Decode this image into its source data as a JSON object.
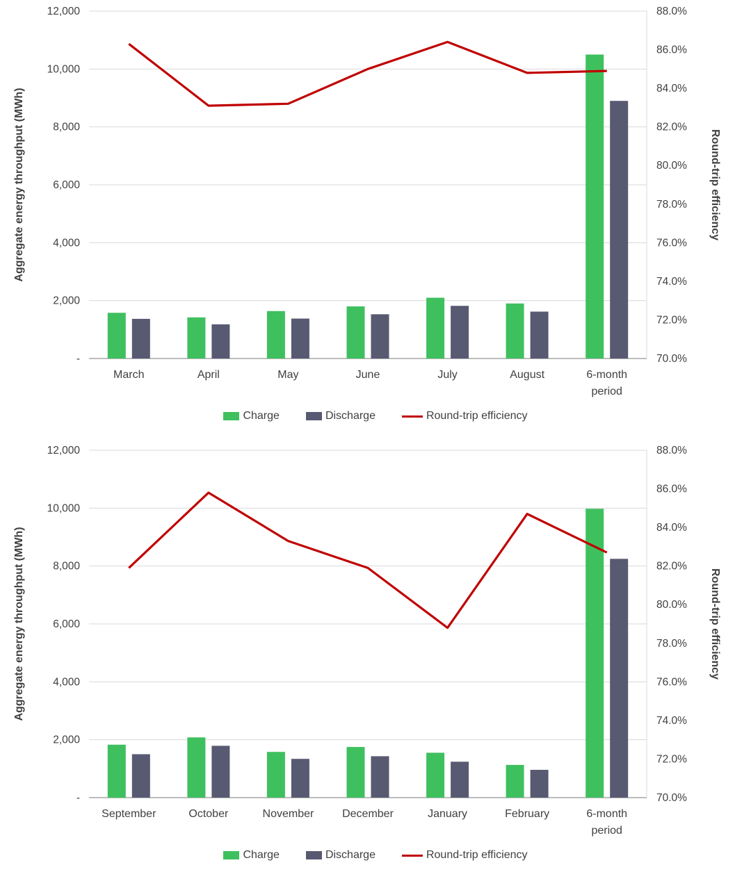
{
  "colors": {
    "charge": "#3fc05f",
    "discharge": "#585a72",
    "efficiency_line": "#c00000",
    "gridline": "#d9d9d9",
    "axis_line": "#a6a6a6",
    "text": "#404040"
  },
  "chart_data": [
    {
      "id": "chart-top",
      "type": "bar",
      "subtype": "combo-bar-line",
      "categories": [
        "March",
        "April",
        "May",
        "June",
        "July",
        "August",
        "6-month period"
      ],
      "series": [
        {
          "name": "Charge",
          "color": "#3fc05f",
          "values": [
            1580,
            1420,
            1640,
            1800,
            2100,
            1900,
            10500
          ]
        },
        {
          "name": "Discharge",
          "color": "#585a72",
          "values": [
            1370,
            1180,
            1380,
            1530,
            1820,
            1620,
            8900
          ]
        }
      ],
      "line": {
        "name": "Round-trip efficiency",
        "color": "#c00000",
        "axis": "right",
        "values": [
          86.3,
          83.1,
          83.2,
          85.0,
          86.4,
          84.8,
          84.9
        ]
      },
      "left_axis": {
        "title": "Aggregate energy throughput (MWh)",
        "min": 0,
        "max": 12000,
        "ticks": [
          "12,000",
          "10,000",
          "8,000",
          "6,000",
          "4,000",
          "2,000",
          "-"
        ]
      },
      "right_axis": {
        "title": "Round-trip efficiency",
        "min": 70,
        "max": 88,
        "ticks": [
          "88.0%",
          "86.0%",
          "84.0%",
          "82.0%",
          "80.0%",
          "78.0%",
          "76.0%",
          "74.0%",
          "72.0%",
          "70.0%"
        ]
      },
      "legend_position": "bottom",
      "grid": true
    },
    {
      "id": "chart-bottom",
      "type": "bar",
      "subtype": "combo-bar-line",
      "categories": [
        "September",
        "October",
        "November",
        "December",
        "January",
        "February",
        "6-month period"
      ],
      "series": [
        {
          "name": "Charge",
          "color": "#3fc05f",
          "values": [
            1830,
            2080,
            1580,
            1750,
            1550,
            1130,
            9980
          ]
        },
        {
          "name": "Discharge",
          "color": "#585a72",
          "values": [
            1500,
            1790,
            1340,
            1430,
            1240,
            960,
            8250
          ]
        }
      ],
      "line": {
        "name": "Round-trip efficiency",
        "color": "#c00000",
        "axis": "right",
        "values": [
          81.9,
          85.8,
          83.3,
          81.9,
          78.8,
          84.7,
          82.7
        ]
      },
      "left_axis": {
        "title": "Aggregate energy throughput (MWh)",
        "min": 0,
        "max": 12000,
        "ticks": [
          "12,000",
          "10,000",
          "8,000",
          "6,000",
          "4,000",
          "2,000",
          "-"
        ]
      },
      "right_axis": {
        "title": "Round-trip efficiency",
        "min": 70,
        "max": 88,
        "ticks": [
          "88.0%",
          "86.0%",
          "84.0%",
          "82.0%",
          "80.0%",
          "78.0%",
          "76.0%",
          "74.0%",
          "72.0%",
          "70.0%"
        ]
      },
      "legend_position": "bottom",
      "grid": true
    }
  ]
}
